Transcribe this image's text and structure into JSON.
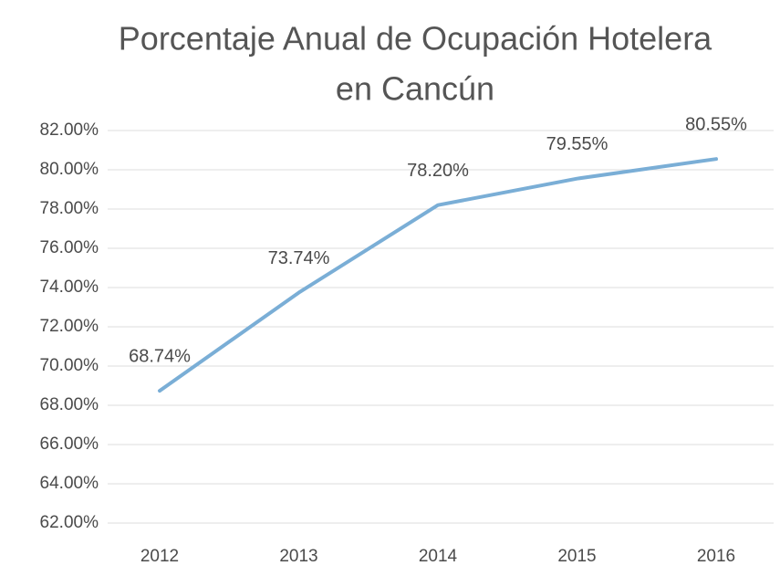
{
  "chart_data": {
    "type": "line",
    "title": [
      "Porcentaje Anual de Ocupación Hotelera",
      "en Cancún"
    ],
    "categories": [
      "2012",
      "2013",
      "2014",
      "2015",
      "2016"
    ],
    "series": [
      {
        "name": "Ocupación",
        "color": "#7aaed6",
        "values": [
          68.74,
          73.74,
          78.2,
          79.55,
          80.55
        ],
        "value_labels": [
          "68.74%",
          "73.74%",
          "78.20%",
          "79.55%",
          "80.55%"
        ]
      }
    ],
    "ylim": [
      62,
      82
    ],
    "yticks": [
      {
        "value": 62,
        "label": "62.00%"
      },
      {
        "value": 64,
        "label": "64.00%"
      },
      {
        "value": 66,
        "label": "66.00%"
      },
      {
        "value": 68,
        "label": "68.00%"
      },
      {
        "value": 70,
        "label": "70.00%"
      },
      {
        "value": 72,
        "label": "72.00%"
      },
      {
        "value": 74,
        "label": "74.00%"
      },
      {
        "value": 76,
        "label": "76.00%"
      },
      {
        "value": 78,
        "label": "78.00%"
      },
      {
        "value": 80,
        "label": "80.00%"
      },
      {
        "value": 82,
        "label": "82.00%"
      }
    ],
    "grid": true
  }
}
